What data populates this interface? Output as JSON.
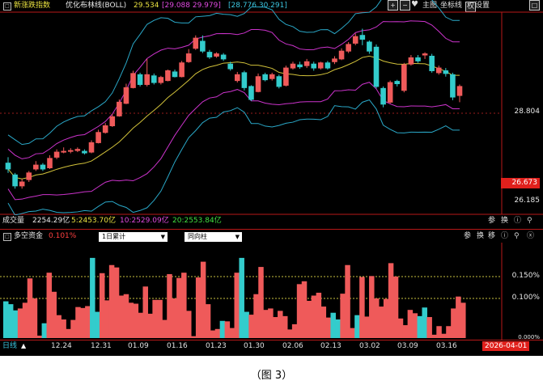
{
  "colors": {
    "up": "#ef5a5a",
    "down": "#33cccc",
    "mid_band": "#d2c23a",
    "upper_band_outer": "#2aa8c8",
    "upper_band_inner": "#cc33cc",
    "bg": "#000000",
    "divider": "#b81818",
    "yellow_text": "#e8e040",
    "pink_text": "#e04ae0",
    "cyan_text": "#3cc6e0",
    "red_text": "#ff4040",
    "green_text": "#40e040"
  },
  "main_panel": {
    "title": "新涨跌指数",
    "indicator_name": "优化布林线(BOLL)",
    "val_mid": "29.534",
    "bracket1": "[29.088  29.979]",
    "bracket2": "[28.776  30.291]",
    "top_buttons": [
      "主图",
      "坐标线",
      "权",
      "设置"
    ],
    "price_label_1": "28.804",
    "price_label_current": "26.673",
    "price_label_2": "26.185"
  },
  "volume_bar": {
    "label": "成交量",
    "total": "2254.29亿",
    "ma5": "5:2453.70亿",
    "ma10": "10:2529.09亿",
    "ma20": "20:2553.84亿",
    "buttons": [
      "参",
      "换"
    ]
  },
  "capital_panel": {
    "title": "多空资金",
    "value": "0.101%",
    "dropdown1": "1日累计",
    "dropdown2": "同向柱",
    "buttons": [
      "参",
      "换",
      "移"
    ],
    "level_1": "0.150%",
    "level_2": "0.100%",
    "level_3": "0.000%"
  },
  "x_axis": {
    "mode_label": "日线",
    "mode_icon": "triangle-up-icon",
    "dates": [
      "12.24",
      "12.31",
      "01.09",
      "01.16",
      "01.23",
      "01.30",
      "02.06",
      "02.13",
      "03.02",
      "03.09",
      "03.16"
    ],
    "current_date": "2026-04-01"
  },
  "caption": "（图 3）",
  "chart_data": [
    {
      "type": "candlestick",
      "title": "新涨跌指数",
      "series": [
        {
          "name": "K",
          "ohlc": [
            [
              27.2,
              27.05,
              27.35,
              26.95
            ],
            [
              26.9,
              26.62,
              26.95,
              26.55
            ],
            [
              26.62,
              26.72,
              26.8,
              26.55
            ],
            [
              26.78,
              26.95,
              27.0,
              26.72
            ],
            [
              27.05,
              27.15,
              27.25,
              27.0
            ],
            [
              27.15,
              27.05,
              27.2,
              27.0
            ],
            [
              27.08,
              27.32,
              27.4,
              27.05
            ],
            [
              27.35,
              27.48,
              27.55,
              27.3
            ],
            [
              27.48,
              27.5,
              27.6,
              27.45
            ],
            [
              27.5,
              27.52,
              27.58,
              27.45
            ],
            [
              27.52,
              27.55,
              27.6,
              27.48
            ],
            [
              27.5,
              27.46,
              27.55,
              27.42
            ],
            [
              27.48,
              27.72,
              27.78,
              27.45
            ],
            [
              27.72,
              27.98,
              28.05,
              27.7
            ],
            [
              27.98,
              28.15,
              28.22,
              27.95
            ],
            [
              28.15,
              28.38,
              28.45,
              28.12
            ],
            [
              28.4,
              28.75,
              28.82,
              28.38
            ],
            [
              28.72,
              29.12,
              29.22,
              28.7
            ],
            [
              29.12,
              29.48,
              29.55,
              29.1
            ],
            [
              29.45,
              29.2,
              29.5,
              29.15
            ],
            [
              29.2,
              29.45,
              29.85,
              29.15
            ],
            [
              29.42,
              29.25,
              29.48,
              29.2
            ],
            [
              29.25,
              29.38,
              29.42,
              29.2
            ],
            [
              29.3,
              29.55,
              29.58,
              29.28
            ],
            [
              29.52,
              29.4,
              29.58,
              29.38
            ],
            [
              29.4,
              29.75,
              29.8,
              29.38
            ],
            [
              29.78,
              29.98,
              30.1,
              29.75
            ],
            [
              30.12,
              30.38,
              30.45,
              30.08
            ],
            [
              30.3,
              30.05,
              30.45,
              30.0
            ],
            [
              30.02,
              29.9,
              30.08,
              29.85
            ],
            [
              29.92,
              29.98,
              30.02,
              29.88
            ],
            [
              29.95,
              29.85,
              30.0,
              29.8
            ],
            [
              29.72,
              29.6,
              29.78,
              29.55
            ],
            [
              29.3,
              29.45,
              29.52,
              29.25
            ],
            [
              29.5,
              29.12,
              29.55,
              29.05
            ],
            [
              29.15,
              28.82,
              29.18,
              28.78
            ],
            [
              29.02,
              29.4,
              29.48,
              29.0
            ],
            [
              29.45,
              29.32,
              29.5,
              29.28
            ],
            [
              29.35,
              29.45,
              29.5,
              29.3
            ],
            [
              29.4,
              29.15,
              29.45,
              29.1
            ],
            [
              29.18,
              29.62,
              29.68,
              29.15
            ],
            [
              29.62,
              29.72,
              29.78,
              29.58
            ],
            [
              29.7,
              29.65,
              29.78,
              29.6
            ],
            [
              29.68,
              29.78,
              29.85,
              29.62
            ],
            [
              29.72,
              29.62,
              29.78,
              29.55
            ],
            [
              29.62,
              29.75,
              29.78,
              29.58
            ],
            [
              29.75,
              29.62,
              29.8,
              29.58
            ],
            [
              29.78,
              29.85,
              29.92,
              29.72
            ],
            [
              29.85,
              30.05,
              30.12,
              29.82
            ],
            [
              30.05,
              30.22,
              30.28,
              30.0
            ],
            [
              30.25,
              30.42,
              30.5,
              30.2
            ],
            [
              30.45,
              30.35,
              30.62,
              30.2
            ],
            [
              30.28,
              30.05,
              30.32,
              29.98
            ],
            [
              30.15,
              29.15,
              30.22,
              29.1
            ],
            [
              29.1,
              28.7,
              29.15,
              28.62
            ],
            [
              28.75,
              29.25,
              29.3,
              28.72
            ],
            [
              29.28,
              29.22,
              29.32,
              29.15
            ],
            [
              29.05,
              29.7,
              29.75,
              29.0
            ],
            [
              29.72,
              29.88,
              29.95,
              29.68
            ],
            [
              29.88,
              29.8,
              29.95,
              29.75
            ],
            [
              29.95,
              29.98,
              30.02,
              29.85
            ],
            [
              29.92,
              29.55,
              29.98,
              29.5
            ],
            [
              29.5,
              29.62,
              29.68,
              29.45
            ],
            [
              29.55,
              29.48,
              29.62,
              29.4
            ],
            [
              29.45,
              28.88,
              29.5,
              28.8
            ],
            [
              28.92,
              29.15,
              29.2,
              28.75
            ]
          ]
        }
      ],
      "ylim": [
        26.0,
        31.0
      ]
    },
    {
      "type": "bar",
      "title": "多空资金",
      "values": [
        0.077,
        0.071,
        0.058,
        0.062,
        0.074,
        0.125,
        0.083,
        0.005,
        0.031,
        0.137,
        0.097,
        0.048,
        0.039,
        0.019,
        0.038,
        0.065,
        0.063,
        0.067,
        0.168,
        0.055,
        0.136,
        0.079,
        0.153,
        0.148,
        0.089,
        0.092,
        0.074,
        0.072,
        0.053,
        0.108,
        0.051,
        0.08,
        0.08,
        0.038,
        0.134,
        0.083,
        0.126,
        0.137,
        0.057,
        0.004,
        0.127,
        0.16,
        0.071,
        0.016,
        0.019,
        0.036,
        0.035,
        0.021,
        0.137,
        0.168,
        0.055,
        0.049,
        0.092,
        0.149,
        0.059,
        0.062,
        0.044,
        0.057,
        0.046,
        0.018,
        0.029,
        0.113,
        0.119,
        0.078,
        0.089,
        0.095,
        0.066,
        0.043,
        0.053,
        0.039,
        0.093,
        0.153,
        0.021,
        0.048,
        0.128,
        0.045,
        0.13,
        0.083,
        0.066,
        0.082,
        0.157,
        0.129,
        0.041,
        0.027,
        0.059,
        0.052,
        0.046,
        0.064,
        0.044,
        0.007,
        0.025,
        0.009,
        0.025,
        0.062,
        0.087,
        0.074
      ],
      "colors_up_down": "ddduuuuuduuuuuuuuudduuuuuuuuuuuuuuuuuuuuuuuuuduuudduuuuuuuuuuuuuuuuudduuuduuuuuuuuuuuudduuuuuuu",
      "ylim": [
        0.0,
        0.2
      ]
    }
  ]
}
